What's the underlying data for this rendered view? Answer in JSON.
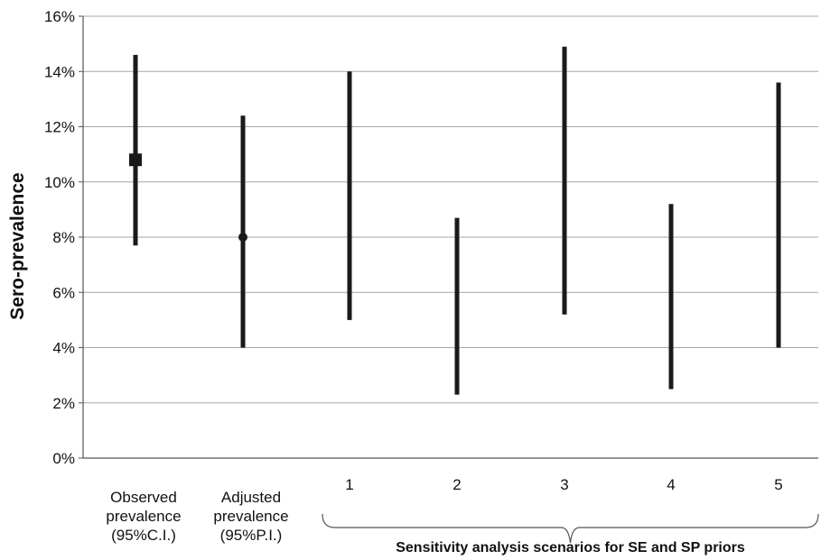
{
  "chart_data": {
    "type": "interval",
    "ylabel": "Sero-prevalence",
    "ylim": [
      0,
      16
    ],
    "yticks": [
      0,
      2,
      4,
      6,
      8,
      10,
      12,
      14,
      16
    ],
    "ytick_labels": [
      "0%",
      "2%",
      "4%",
      "6%",
      "8%",
      "10%",
      "12%",
      "14%",
      "16%"
    ],
    "grid": true,
    "categories": [
      {
        "label": [
          "Observed",
          "prevalence",
          "(95%C.I.)"
        ],
        "low": 7.7,
        "high": 14.6,
        "point": 10.8,
        "marker": "square"
      },
      {
        "label": [
          "Adjusted",
          "prevalence",
          "(95%P.I.)"
        ],
        "low": 4.0,
        "high": 12.4,
        "point": 8.0,
        "marker": "circle"
      },
      {
        "label": [
          "1"
        ],
        "low": 5.0,
        "high": 14.0,
        "point": null,
        "marker": "none"
      },
      {
        "label": [
          "2"
        ],
        "low": 2.3,
        "high": 8.7,
        "point": null,
        "marker": "none"
      },
      {
        "label": [
          "3"
        ],
        "low": 5.2,
        "high": 14.9,
        "point": null,
        "marker": "none"
      },
      {
        "label": [
          "4"
        ],
        "low": 2.5,
        "high": 9.2,
        "point": null,
        "marker": "none"
      },
      {
        "label": [
          "5"
        ],
        "low": 4.0,
        "high": 13.6,
        "point": null,
        "marker": "none"
      }
    ],
    "group_annotation": {
      "label": "Sensitivity analysis scenarios for SE and SP priors",
      "from_category": 2,
      "to_category": 6
    },
    "colors": {
      "bars": "#1a1a1a",
      "grid": "#a6a6a6",
      "axis": "#555555"
    }
  }
}
